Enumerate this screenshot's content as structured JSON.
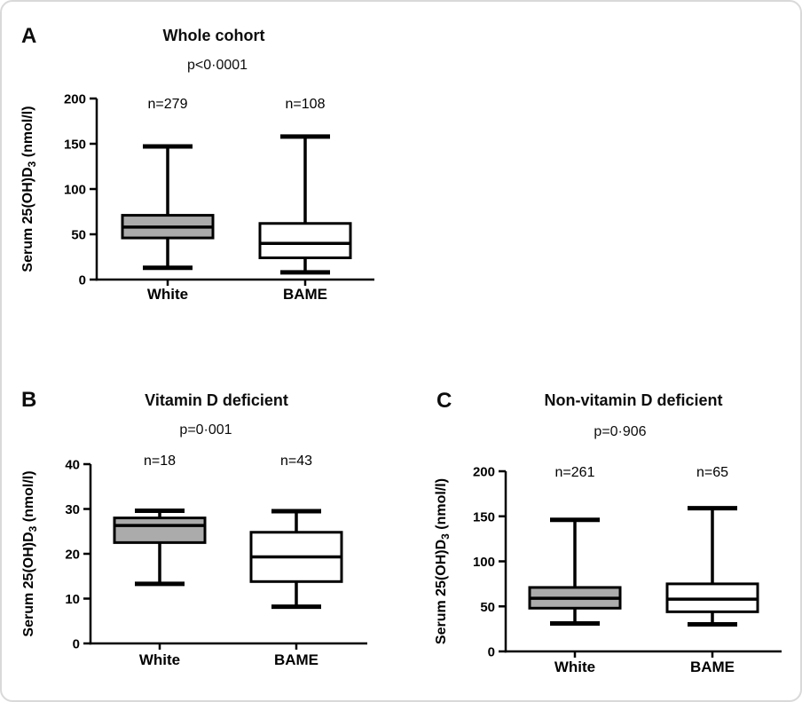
{
  "chart_data": [
    {
      "type": "box",
      "panel_label": "A",
      "title": "Whole cohort",
      "p_value": "p<0·0001",
      "ylabel": {
        "pre": "Serum 25(OH)D",
        "sub": "3",
        "post": " (nmol/l)"
      },
      "ylim": [
        0,
        200
      ],
      "yticks": [
        0,
        50,
        100,
        150,
        200
      ],
      "categories": [
        "White",
        "BAME"
      ],
      "legend": "none",
      "grid": false,
      "groups": [
        {
          "label": "White",
          "n_label": "n=279",
          "box_fill": "#ABABAB",
          "whisker_min": 13,
          "q1": 46,
          "median": 58,
          "q3": 71,
          "whisker_max": 147
        },
        {
          "label": "BAME",
          "n_label": "n=108",
          "box_fill": "#FFFFFF",
          "whisker_min": 8,
          "q1": 24,
          "median": 40,
          "q3": 62,
          "whisker_max": 158
        }
      ]
    },
    {
      "type": "box",
      "panel_label": "B",
      "title": "Vitamin D deficient",
      "p_value": "p=0·001",
      "ylabel": {
        "pre": "Serum 25(OH)D",
        "sub": "3",
        "post": " (nmol/l)"
      },
      "ylim": [
        0,
        40
      ],
      "yticks": [
        0,
        10,
        20,
        30,
        40
      ],
      "categories": [
        "White",
        "BAME"
      ],
      "legend": "none",
      "grid": false,
      "groups": [
        {
          "label": "White",
          "n_label": "n=18",
          "box_fill": "#ABABAB",
          "whisker_min": 13.3,
          "q1": 22.5,
          "median": 26.3,
          "q3": 28,
          "whisker_max": 29.6
        },
        {
          "label": "BAME",
          "n_label": "n=43",
          "box_fill": "#FFFFFF",
          "whisker_min": 8.2,
          "q1": 13.8,
          "median": 19.3,
          "q3": 24.8,
          "whisker_max": 29.5
        }
      ]
    },
    {
      "type": "box",
      "panel_label": "C",
      "title": "Non-vitamin D deficient",
      "p_value": "p=0·906",
      "ylabel": {
        "pre": "Serum 25(OH)D",
        "sub": "3",
        "post": " (nmol/l)"
      },
      "ylim": [
        0,
        200
      ],
      "yticks": [
        0,
        50,
        100,
        150,
        200
      ],
      "categories": [
        "White",
        "BAME"
      ],
      "legend": "none",
      "grid": false,
      "groups": [
        {
          "label": "White",
          "n_label": "n=261",
          "box_fill": "#ABABAB",
          "whisker_min": 31,
          "q1": 48,
          "median": 59,
          "q3": 71,
          "whisker_max": 146
        },
        {
          "label": "BAME",
          "n_label": "n=65",
          "box_fill": "#FFFFFF",
          "whisker_min": 30,
          "q1": 44,
          "median": 58,
          "q3": 75,
          "whisker_max": 159
        }
      ]
    }
  ],
  "colors": {
    "box_gray": "#ABABAB",
    "box_white": "#FFFFFF",
    "line": "#000000",
    "frame_border": "#D9D9D9",
    "background": "#FFFFFF"
  }
}
